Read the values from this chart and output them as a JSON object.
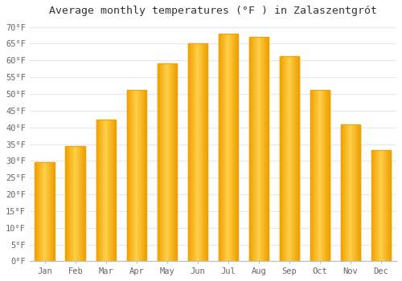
{
  "title": "Average monthly temperatures (°F ) in Zalaszentgrót",
  "months": [
    "Jan",
    "Feb",
    "Mar",
    "Apr",
    "May",
    "Jun",
    "Jul",
    "Aug",
    "Sep",
    "Oct",
    "Nov",
    "Dec"
  ],
  "values": [
    29.5,
    34.3,
    42.3,
    51.1,
    59.2,
    65.1,
    68.0,
    67.1,
    61.3,
    51.1,
    41.0,
    33.1
  ],
  "bar_color_center": "#FFD04A",
  "bar_color_edge": "#F0A000",
  "background_color": "#FFFFFF",
  "grid_color": "#E8E8F0",
  "ylim": [
    0,
    72
  ],
  "title_fontsize": 9.5,
  "tick_fontsize": 7.5,
  "font_family": "monospace"
}
